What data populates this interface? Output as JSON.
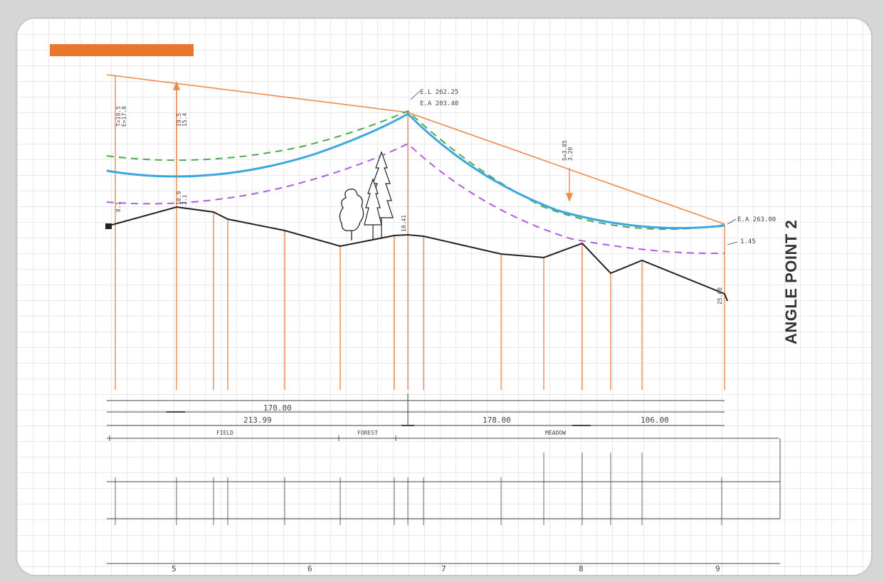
{
  "title": "ANGLE POINT 2",
  "colors": {
    "background": "#d6d6d6",
    "card": "#ffffff",
    "accent_bar": "#e9762c",
    "chord": "#f08a4b",
    "ground": "#222222",
    "conductor_blue": "#3aa7de",
    "hot_green": "#4da84a",
    "cold_purple": "#b35be0",
    "grid": "#e9e9e9"
  },
  "elevation_labels": {
    "el_top": "E.L 262.25",
    "el_mid": "E.A 203.40",
    "el_right": "E.A 263.00",
    "offset_right": "1.45",
    "ground_right": "25.00",
    "mid_station": "10.41"
  },
  "dimensions": {
    "span_top": "170.00",
    "span_left": "213.99",
    "span_mid": "178.00",
    "span_right": "106.00"
  },
  "land_use": [
    "FIELD",
    "FOREST",
    "MEADOW"
  ],
  "station_numbers": [
    "5",
    "6",
    "7",
    "8",
    "9"
  ]
}
